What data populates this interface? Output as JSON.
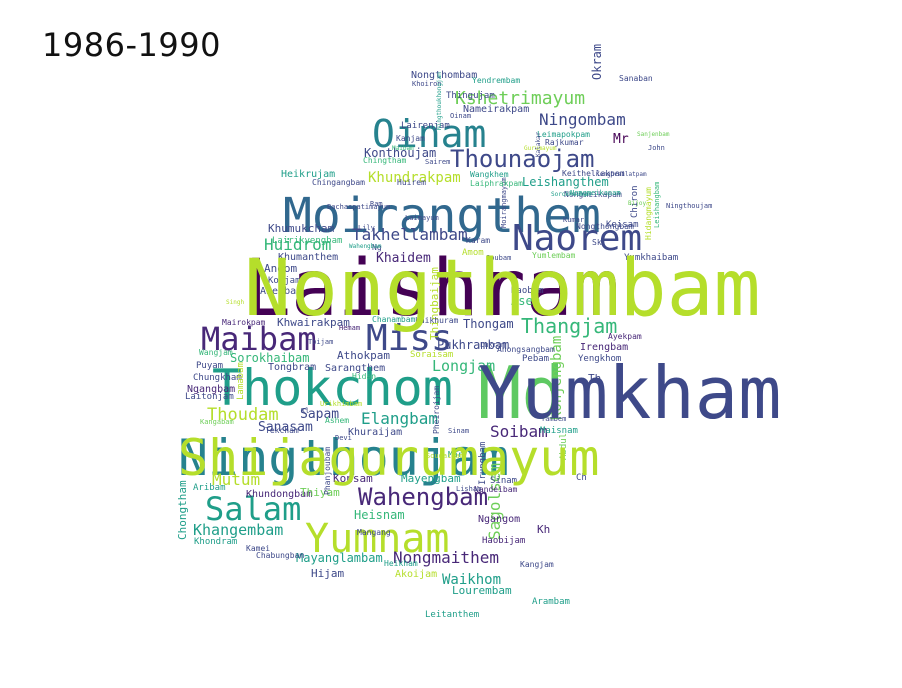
{
  "title": "1986-1990",
  "palette": [
    "#440154",
    "#482878",
    "#3e4989",
    "#31688e",
    "#26828e",
    "#1f9e89",
    "#35b779",
    "#6ece58",
    "#b5de2b"
  ],
  "words": [
    {
      "text": "Laishram",
      "color": "#440154"
    },
    {
      "text": "Md",
      "color": "#5ec962"
    },
    {
      "text": "Ningthoujam",
      "color": "#26828e"
    },
    {
      "text": "Thokchom",
      "color": "#1f9e89"
    },
    {
      "text": "Moirangthem",
      "color": "#31688e"
    },
    {
      "text": "Yumnam",
      "color": "#b5de2b"
    },
    {
      "text": "Oinam",
      "color": "#26828e"
    },
    {
      "text": "Naorem",
      "color": "#3e4989"
    },
    {
      "text": "Miss",
      "color": "#3e4989"
    },
    {
      "text": "Maibam",
      "color": "#482878"
    },
    {
      "text": "Salam",
      "color": "#1f9e89"
    },
    {
      "text": "Wahengbam",
      "color": "#482878"
    },
    {
      "text": "Thounaojam",
      "color": "#3e4989"
    },
    {
      "text": "Kshetrimayum",
      "color": "#6ece58"
    },
    {
      "text": "Thangjam",
      "color": "#35b779"
    },
    {
      "text": "Ningombam",
      "color": "#3e4989"
    },
    {
      "text": "Takhellambam",
      "color": "#3e4989"
    },
    {
      "text": "Khundrakpam",
      "color": "#b5de2b"
    },
    {
      "text": "Huidrom",
      "color": "#35b779"
    },
    {
      "text": "Thoudam",
      "color": "#b5de2b"
    },
    {
      "text": "Elangbam",
      "color": "#1f9e89"
    },
    {
      "text": "Soibam",
      "color": "#482878"
    },
    {
      "text": "Nongmaithem",
      "color": "#482878"
    },
    {
      "text": "Khangembam",
      "color": "#1f9e89"
    },
    {
      "text": "Mutum",
      "color": "#b5de2b"
    },
    {
      "text": "Longjam",
      "color": "#35b779"
    },
    {
      "text": "Sagolsem",
      "color": "#6ece58"
    },
    {
      "text": "Konthoujam",
      "color": "#3e4989"
    },
    {
      "text": "Pukhrambam",
      "color": "#3e4989"
    },
    {
      "text": "Thingbaijam",
      "color": "#b5de2b"
    },
    {
      "text": "Waikhom",
      "color": "#1f9e89"
    },
    {
      "text": "Mayanglambam",
      "color": "#1f9e89"
    },
    {
      "text": "Sorokhaibam",
      "color": "#35b779"
    },
    {
      "text": "Sapam",
      "color": "#3e4989"
    },
    {
      "text": "Khwairakpam",
      "color": "#3e4989"
    },
    {
      "text": "Khumukcham",
      "color": "#3e4989"
    },
    {
      "text": "Leishangthem",
      "color": "#1f9e89"
    },
    {
      "text": "Khaidem",
      "color": "#482878"
    },
    {
      "text": "Heisnam",
      "color": "#35b779"
    },
    {
      "text": "Mayengbam",
      "color": "#1f9e89"
    },
    {
      "text": "Konsam",
      "color": "#482878"
    },
    {
      "text": "Sanasam",
      "color": "#3e4989"
    },
    {
      "text": "Thongam",
      "color": "#3e4989"
    },
    {
      "text": "Lourembam",
      "color": "#1f9e89"
    },
    {
      "text": "Nongthombam",
      "color": "#3e4989"
    },
    {
      "text": "Kangjam",
      "color": "#3e4989"
    },
    {
      "text": "Konjengbam",
      "color": "#6ece58"
    },
    {
      "text": "Chongtham",
      "color": "#1f9e89"
    },
    {
      "text": "Mr",
      "color": "#440154"
    },
    {
      "text": "Hijam",
      "color": "#3e4989"
    },
    {
      "text": "Athokpam",
      "color": "#3e4989"
    },
    {
      "text": "Ngangom",
      "color": "#482878"
    },
    {
      "text": "Khumanthem",
      "color": "#3e4989"
    },
    {
      "text": "Irengbam",
      "color": "#482878"
    },
    {
      "text": "Sarangthem",
      "color": "#3e4989"
    },
    {
      "text": "Khuraijam",
      "color": "#3e4989"
    },
    {
      "text": "Heikrujam",
      "color": "#1f9e89"
    },
    {
      "text": "Leitanthem",
      "color": "#1f9e89"
    },
    {
      "text": "Khundongbam",
      "color": "#482878"
    },
    {
      "text": "Thiyam",
      "color": "#6ece58"
    },
    {
      "text": "Yengkhom",
      "color": "#3e4989"
    },
    {
      "text": "Haobam",
      "color": "#3e4989"
    },
    {
      "text": "Ayekpam",
      "color": "#482878"
    },
    {
      "text": "Chingangbam",
      "color": "#3e4989"
    },
    {
      "text": "Arambam",
      "color": "#1f9e89"
    },
    {
      "text": "Pebam",
      "color": "#3e4989"
    },
    {
      "text": "Okram",
      "color": "#3e4989"
    },
    {
      "text": "Sinam",
      "color": "#3e4989"
    },
    {
      "text": "Nameirakpam",
      "color": "#3e4989"
    },
    {
      "text": "Akoijam",
      "color": "#b5de2b"
    },
    {
      "text": "Angom",
      "color": "#3e4989"
    },
    {
      "text": "Aheibam",
      "color": "#3e4989"
    },
    {
      "text": "Tongbram",
      "color": "#3e4989"
    },
    {
      "text": "Puyam",
      "color": "#3e4989"
    },
    {
      "text": "Ngangbam",
      "color": "#482878"
    },
    {
      "text": "Asem",
      "color": "#35b779"
    },
    {
      "text": "Maisnam",
      "color": "#1f9e89"
    },
    {
      "text": "Thingujam",
      "color": "#3e4989"
    },
    {
      "text": "Wangkhem",
      "color": "#1f9e89"
    },
    {
      "text": "Keisam",
      "color": "#3e4989"
    },
    {
      "text": "Kh",
      "color": "#482878"
    },
    {
      "text": "Haobijam",
      "color": "#482878"
    },
    {
      "text": "Yumkhaibam",
      "color": "#3e4989"
    },
    {
      "text": "Nandeibam",
      "color": "#482878"
    },
    {
      "text": "Chabungbam",
      "color": "#3e4989"
    },
    {
      "text": "Lairenjam",
      "color": "#3e4989"
    },
    {
      "text": "Chungkham",
      "color": "#3e4989"
    },
    {
      "text": "Mairokpam",
      "color": "#482878"
    },
    {
      "text": "Soraisam",
      "color": "#b5de2b"
    },
    {
      "text": "Laitonjam",
      "color": "#3e4989"
    },
    {
      "text": "Kamei",
      "color": "#3e4989"
    },
    {
      "text": "Koijam",
      "color": "#3e4989"
    },
    {
      "text": "Irungbam",
      "color": "#3e4989"
    },
    {
      "text": "Heikham",
      "color": "#1f9e89"
    },
    {
      "text": "Sanaban",
      "color": "#3e4989"
    },
    {
      "text": "Chanambam",
      "color": "#1f9e89"
    },
    {
      "text": "Lamabam",
      "color": "#b5de2b"
    },
    {
      "text": "Khondram",
      "color": "#1f9e89"
    },
    {
      "text": "Mary",
      "color": "#1f9e89"
    },
    {
      "text": "Aribam",
      "color": "#1f9e89"
    },
    {
      "text": "Karam",
      "color": "#3e4989"
    },
    {
      "text": "Hemam",
      "color": "#482878"
    },
    {
      "text": "Th",
      "color": "#3e4989"
    },
    {
      "text": "Abdul",
      "color": "#6ece58"
    },
    {
      "text": "Khoiron",
      "color": "#3e4989"
    },
    {
      "text": "Yendrembam",
      "color": "#1f9e89"
    },
    {
      "text": "Wangjam",
      "color": "#35b779"
    },
    {
      "text": "Rajkumar",
      "color": "#3e4989"
    },
    {
      "text": "Leimapokpam",
      "color": "#1f9e89"
    },
    {
      "text": "Moirangmayum",
      "color": "#3e4989"
    },
    {
      "text": "Yumlembam",
      "color": "#6ece58"
    },
    {
      "text": "Amom",
      "color": "#b5de2b"
    },
    {
      "text": "Nongthongbam",
      "color": "#3e4989"
    },
    {
      "text": "Anongsangbam",
      "color": "#3e4989"
    },
    {
      "text": "Lairikyengbam",
      "color": "#35b779"
    },
    {
      "text": "Phanjoubam",
      "color": "#3e4989"
    },
    {
      "text": "Chiron",
      "color": "#3e4989"
    },
    {
      "text": "Soubam",
      "color": "#3e4989"
    },
    {
      "text": "Kangabam",
      "color": "#6ece58"
    },
    {
      "text": "Leishangbam",
      "color": "#35b779"
    },
    {
      "text": "Tekcham",
      "color": "#3e4989"
    },
    {
      "text": "Ashem",
      "color": "#35b779"
    },
    {
      "text": "Laikhuram",
      "color": "#3e4989"
    },
    {
      "text": "Urikhimbam",
      "color": "#b5de2b"
    },
    {
      "text": "Yambem",
      "color": "#3e4989"
    },
    {
      "text": "Keithellakpam",
      "color": "#3e4989"
    },
    {
      "text": "Lukram",
      "color": "#3e4989"
    },
    {
      "text": "Nongmeikapam",
      "color": "#3e4989"
    },
    {
      "text": "Kanjam",
      "color": "#3e4989"
    },
    {
      "text": "Sairem",
      "color": "#3e4989"
    },
    {
      "text": "Ch",
      "color": "#3e4989"
    },
    {
      "text": "John",
      "color": "#3e4989"
    },
    {
      "text": "Laiphrakpam",
      "color": "#35b779"
    },
    {
      "text": "Chingtham",
      "color": "#35b779"
    },
    {
      "text": "Huirem",
      "color": "#3e4989"
    },
    {
      "text": "Nongmeikapam",
      "color": "#1f9e89"
    },
    {
      "text": "Pheiroijam",
      "color": "#3e4989"
    },
    {
      "text": "Sougaijam",
      "color": "#b5de2b"
    },
    {
      "text": "Lisham",
      "color": "#3e4989"
    },
    {
      "text": "Toijam",
      "color": "#3e4989"
    },
    {
      "text": "Sorokhaibam",
      "color": "#1f9e89"
    },
    {
      "text": "Ningthoukhongjam",
      "color": "#1f9e89"
    },
    {
      "text": "Mangang",
      "color": "#3e4989"
    },
    {
      "text": "Bachaspatimayum",
      "color": "#3e4989"
    },
    {
      "text": "Gurumayum",
      "color": "#b5de2b"
    },
    {
      "text": "Kalakar",
      "color": "#3e4989"
    },
    {
      "text": "Ningthoujam",
      "color": "#3e4989"
    },
    {
      "text": "Hidangmayum",
      "color": "#b5de2b"
    },
    {
      "text": "Hidan",
      "color": "#35b779"
    },
    {
      "text": "Ng",
      "color": "#3e4989"
    },
    {
      "text": "Sk",
      "color": "#3e4989"
    },
    {
      "text": "Kl",
      "color": "#3e4989"
    },
    {
      "text": "Sinam",
      "color": "#3e4989"
    },
    {
      "text": "Laimayum",
      "color": "#3e4989"
    },
    {
      "text": "Oinam",
      "color": "#3e4989"
    },
    {
      "text": "Bijoy",
      "color": "#6ece58"
    },
    {
      "text": "Ram",
      "color": "#3e4989"
    },
    {
      "text": "Maibam",
      "color": "#35b779"
    },
    {
      "text": "Kumar",
      "color": "#3e4989"
    },
    {
      "text": "Singh",
      "color": "#b5de2b"
    },
    {
      "text": "Devi",
      "color": "#3e4989"
    },
    {
      "text": "Lily",
      "color": "#3e4989"
    },
    {
      "text": "Wahengbam",
      "color": "#1f9e89"
    },
    {
      "text": "Sanjenbam",
      "color": "#6ece58"
    },
    {
      "text": "Kongbrailatpam",
      "color": "#3e4989"
    },
    {
      "text": "Nongthombam",
      "color": "#b5de2b"
    },
    {
      "text": "Yumkham",
      "color": "#3e4989"
    },
    {
      "text": "Shijagurumayum",
      "color": "#b5de2b"
    }
  ]
}
